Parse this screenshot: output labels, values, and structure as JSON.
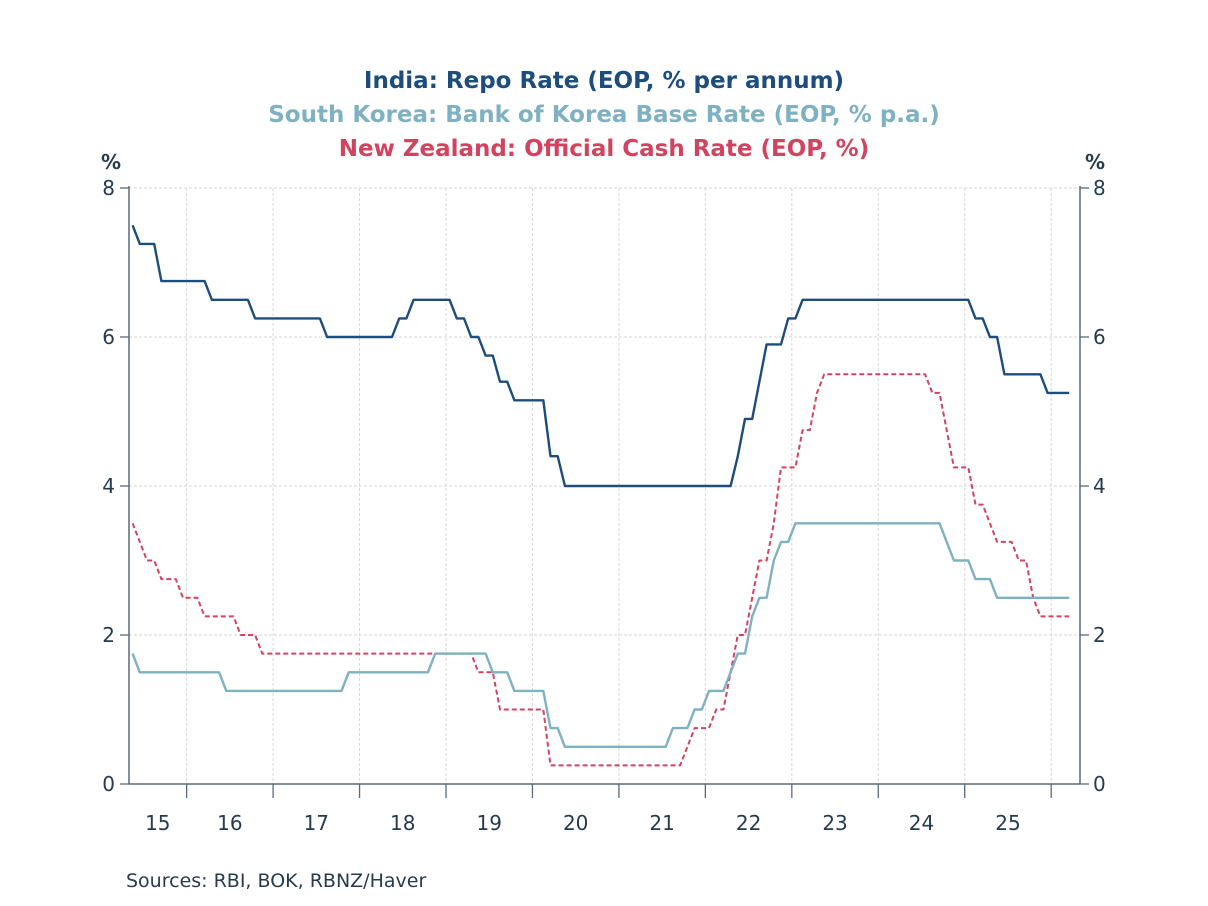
{
  "chart_data": {
    "type": "line",
    "title_lines": [
      "India: Repo Rate (EOP, % per annum)",
      "South Korea: Bank of Korea Base Rate (EOP, % p.a.)",
      "New Zealand: Official Cash Rate (EOP, %)"
    ],
    "ylabel_left": "%",
    "ylabel_right": "%",
    "ylim": [
      0,
      8
    ],
    "yticks": [
      "0",
      "2",
      "4",
      "6",
      "8"
    ],
    "xlabel": "",
    "x_tick_labels": [
      "15",
      "16",
      "17",
      "18",
      "19",
      "20",
      "21",
      "22",
      "23",
      "24",
      "25"
    ],
    "x_start": "2015-05",
    "x_end": "2026-03",
    "frequency": "monthly",
    "grid": true,
    "source": "Sources:  RBI, BOK, RBNZ/Haver",
    "series": [
      {
        "name": "India: Repo Rate (EOP, % per annum)",
        "color": "#1d4d7c",
        "style": "solid",
        "changes": [
          [
            "2015-05",
            7.5
          ],
          [
            "2015-06",
            7.25
          ],
          [
            "2015-09",
            6.75
          ],
          [
            "2016-04",
            6.5
          ],
          [
            "2016-10",
            6.25
          ],
          [
            "2017-08",
            6.0
          ],
          [
            "2018-06",
            6.25
          ],
          [
            "2018-08",
            6.5
          ],
          [
            "2019-02",
            6.25
          ],
          [
            "2019-04",
            6.0
          ],
          [
            "2019-06",
            5.75
          ],
          [
            "2019-08",
            5.4
          ],
          [
            "2019-10",
            5.15
          ],
          [
            "2020-03",
            4.4
          ],
          [
            "2020-05",
            4.0
          ],
          [
            "2022-05",
            4.4
          ],
          [
            "2022-06",
            4.9
          ],
          [
            "2022-08",
            5.4
          ],
          [
            "2022-09",
            5.9
          ],
          [
            "2022-12",
            6.25
          ],
          [
            "2023-02",
            6.5
          ],
          [
            "2025-02",
            6.25
          ],
          [
            "2025-04",
            6.0
          ],
          [
            "2025-06",
            5.5
          ],
          [
            "2025-12",
            5.25
          ]
        ]
      },
      {
        "name": "South Korea: Bank of Korea Base Rate (EOP, % p.a.)",
        "color": "#7eb1c1",
        "style": "solid",
        "changes": [
          [
            "2015-05",
            1.75
          ],
          [
            "2015-06",
            1.5
          ],
          [
            "2016-06",
            1.25
          ],
          [
            "2017-11",
            1.5
          ],
          [
            "2018-11",
            1.75
          ],
          [
            "2019-07",
            1.5
          ],
          [
            "2019-10",
            1.25
          ],
          [
            "2020-03",
            0.75
          ],
          [
            "2020-05",
            0.5
          ],
          [
            "2021-08",
            0.75
          ],
          [
            "2021-11",
            1.0
          ],
          [
            "2022-01",
            1.25
          ],
          [
            "2022-04",
            1.5
          ],
          [
            "2022-05",
            1.75
          ],
          [
            "2022-07",
            2.25
          ],
          [
            "2022-08",
            2.5
          ],
          [
            "2022-10",
            3.0
          ],
          [
            "2022-11",
            3.25
          ],
          [
            "2023-01",
            3.5
          ],
          [
            "2024-10",
            3.25
          ],
          [
            "2024-11",
            3.0
          ],
          [
            "2025-02",
            2.75
          ],
          [
            "2025-05",
            2.5
          ]
        ]
      },
      {
        "name": "New Zealand: Official Cash Rate (EOP, %)",
        "color": "#d2435f",
        "style": "dashed",
        "changes": [
          [
            "2015-05",
            3.5
          ],
          [
            "2015-06",
            3.25
          ],
          [
            "2015-07",
            3.0
          ],
          [
            "2015-09",
            2.75
          ],
          [
            "2015-12",
            2.5
          ],
          [
            "2016-03",
            2.25
          ],
          [
            "2016-08",
            2.0
          ],
          [
            "2016-11",
            1.75
          ],
          [
            "2019-05",
            1.5
          ],
          [
            "2019-08",
            1.0
          ],
          [
            "2020-03",
            0.25
          ],
          [
            "2021-10",
            0.5
          ],
          [
            "2021-11",
            0.75
          ],
          [
            "2022-02",
            1.0
          ],
          [
            "2022-04",
            1.5
          ],
          [
            "2022-05",
            2.0
          ],
          [
            "2022-07",
            2.5
          ],
          [
            "2022-08",
            3.0
          ],
          [
            "2022-10",
            3.5
          ],
          [
            "2022-11",
            4.25
          ],
          [
            "2023-02",
            4.75
          ],
          [
            "2023-04",
            5.25
          ],
          [
            "2023-05",
            5.5
          ],
          [
            "2024-08",
            5.25
          ],
          [
            "2024-10",
            4.75
          ],
          [
            "2024-11",
            4.25
          ],
          [
            "2025-02",
            3.75
          ],
          [
            "2025-04",
            3.5
          ],
          [
            "2025-05",
            3.25
          ],
          [
            "2025-08",
            3.0
          ],
          [
            "2025-10",
            2.5
          ],
          [
            "2025-11",
            2.25
          ]
        ]
      }
    ]
  }
}
